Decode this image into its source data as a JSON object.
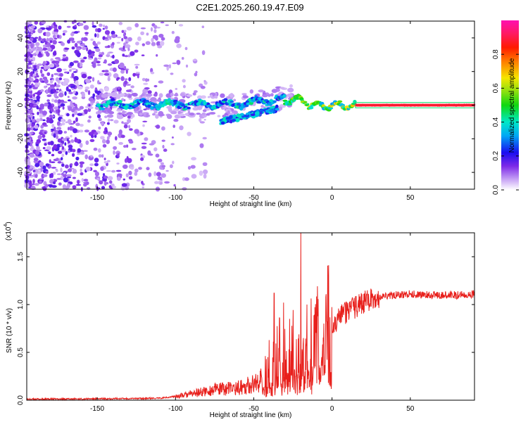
{
  "figure_title": "C2E1.2025.260.19.47.E09",
  "colors": {
    "snr_line": "#e8201c",
    "axis": "#000000",
    "background": "#ffffff"
  },
  "chart_data": [
    {
      "type": "heatmap",
      "title": "C2E1.2025.260.19.47.E09",
      "xlabel": "Height of straight line (km)",
      "ylabel": "Frequency (Hz)",
      "xlim": [
        -195,
        91
      ],
      "ylim": [
        -50,
        50
      ],
      "xticks": [
        -150,
        -100,
        -50,
        0,
        50
      ],
      "yticks": [
        -40,
        -20,
        0,
        20,
        40
      ],
      "colorbar": {
        "label": "Normalized spectral amplitude",
        "range": [
          0.0,
          1.0
        ],
        "ticks": [
          "0.0",
          "0.2",
          "0.4",
          "0.6",
          "0.8"
        ],
        "tick_values": [
          0.0,
          0.2,
          0.4,
          0.6,
          0.8
        ],
        "colormap": "rainbow (white-violet-blue-cyan-green-yellow-red-magenta)"
      },
      "features": [
        {
          "name": "broadband noise",
          "x_range": [
            -195,
            -90
          ],
          "freq_range": [
            -50,
            50
          ],
          "amplitude": [
            0.02,
            0.15
          ]
        },
        {
          "name": "carrier track",
          "x_range": [
            -150,
            91
          ],
          "freq_center": 0,
          "amplitude": [
            0.2,
            0.95
          ]
        },
        {
          "name": "secondary track",
          "x_range": [
            -72,
            -35
          ],
          "freq_range": [
            -10,
            -2
          ],
          "amplitude": [
            0.2,
            0.45
          ]
        }
      ]
    },
    {
      "type": "line",
      "title": "",
      "xlabel": "Height of straight line (km)",
      "ylabel": "SNR (10 * v/v)",
      "y_multiplier": "(x10",
      "y_multiplier_exp": "4",
      "y_multiplier_close": ")",
      "xlim": [
        -195,
        91
      ],
      "ylim": [
        0,
        1.75
      ],
      "xticks": [
        -150,
        -100,
        -50,
        0,
        50
      ],
      "yticks": [
        "0.0",
        "0.5",
        "1.0",
        "1.5"
      ],
      "ytick_values": [
        0,
        0.5,
        1.0,
        1.5
      ],
      "series": [
        {
          "name": "SNR",
          "envelope": {
            "x": [
              -195,
              -150,
              -110,
              -95,
              -85,
              -75,
              -60,
              -50,
              -45,
              -40,
              -35,
              -30,
              -25,
              -20,
              -15,
              -10,
              -5,
              0,
              10,
              20,
              30,
              40,
              50,
              60,
              70,
              80,
              91
            ],
            "y": [
              0.01,
              0.015,
              0.02,
              0.05,
              0.08,
              0.11,
              0.13,
              0.17,
              0.22,
              0.35,
              0.45,
              0.48,
              0.52,
              0.5,
              0.56,
              0.62,
              0.7,
              0.8,
              0.93,
              1.02,
              1.08,
              1.1,
              1.11,
              1.1,
              1.1,
              1.1,
              1.11
            ]
          },
          "peaks": [
            {
              "x": -37,
              "y": 1.12
            },
            {
              "x": -31,
              "y": 1.02
            },
            {
              "x": -20,
              "y": 1.75
            },
            {
              "x": -16,
              "y": 1.0
            },
            {
              "x": -27,
              "y": 0.85
            }
          ]
        }
      ]
    }
  ]
}
